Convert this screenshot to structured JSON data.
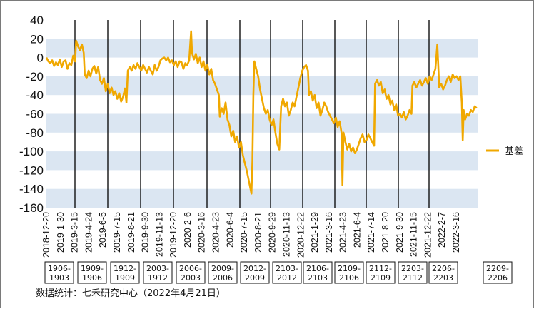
{
  "chart_data": {
    "type": "line",
    "ylim": [
      -160,
      40
    ],
    "yticks": [
      40,
      20,
      0,
      -20,
      -40,
      -60,
      -80,
      -100,
      -120,
      -140,
      -160
    ],
    "series_color": "#f0a800",
    "band_color": "#dbe6f2",
    "x_tick_labels": [
      "2018-12-20",
      "2019-1-30",
      "2019-3-15",
      "2019-4-24",
      "2019-6-5",
      "2019-7-15",
      "2019-8-21",
      "2019-9-30",
      "2019-11-13",
      "2019-12-20",
      "2020-2-6",
      "2020-3-16",
      "2020-4-23",
      "2020-6-4",
      "2020-7-15",
      "2020-8-21",
      "2020-9-29",
      "2020-11-13",
      "2020-12-22",
      "2021-1-29",
      "2021-3-16",
      "2021-4-23",
      "2021-6-4",
      "2021-7-14",
      "2021-8-20",
      "2021-9-30",
      "2021-11-15",
      "2021-12-22",
      "2022-2-7",
      "2022-3-16"
    ],
    "series": [
      {
        "name": "基差",
        "values": [
          [
            0,
            0
          ],
          [
            0.2,
            -4
          ],
          [
            0.4,
            -6
          ],
          [
            0.6,
            -3
          ],
          [
            0.8,
            -9
          ],
          [
            1.0,
            -5
          ],
          [
            1.2,
            -8
          ],
          [
            1.4,
            -2
          ],
          [
            1.6,
            -10
          ],
          [
            1.8,
            -4
          ],
          [
            2.0,
            -3
          ],
          [
            2.2,
            -12
          ],
          [
            2.4,
            -6
          ],
          [
            2.6,
            -8
          ],
          [
            2.8,
            2
          ],
          [
            3.0,
            -4
          ],
          [
            3.1,
            18
          ],
          [
            3.3,
            12
          ],
          [
            3.5,
            8
          ],
          [
            3.7,
            14
          ],
          [
            3.9,
            5
          ],
          [
            4.0,
            -18
          ],
          [
            4.2,
            -22
          ],
          [
            4.4,
            -14
          ],
          [
            4.6,
            -20
          ],
          [
            4.8,
            -12
          ],
          [
            5.0,
            -9
          ],
          [
            5.2,
            -17
          ],
          [
            5.4,
            -10
          ],
          [
            5.6,
            -24
          ],
          [
            5.8,
            -28
          ],
          [
            6.0,
            -22
          ],
          [
            6.2,
            -36
          ],
          [
            6.4,
            -28
          ],
          [
            6.6,
            -38
          ],
          [
            6.8,
            -32
          ],
          [
            7.0,
            -40
          ],
          [
            7.2,
            -36
          ],
          [
            7.4,
            -44
          ],
          [
            7.6,
            -38
          ],
          [
            7.8,
            -47
          ],
          [
            8.0,
            -42
          ],
          [
            8.2,
            -33
          ],
          [
            8.35,
            -48
          ],
          [
            8.5,
            -14
          ],
          [
            8.7,
            -10
          ],
          [
            8.9,
            -14
          ],
          [
            9.1,
            -8
          ],
          [
            9.3,
            -12
          ],
          [
            9.5,
            -6
          ],
          [
            9.7,
            -10
          ],
          [
            9.9,
            -14
          ],
          [
            10.1,
            -8
          ],
          [
            10.3,
            -12
          ],
          [
            10.5,
            -16
          ],
          [
            10.7,
            -10
          ],
          [
            10.9,
            -14
          ],
          [
            11.1,
            -18
          ],
          [
            11.3,
            -8
          ],
          [
            11.5,
            -14
          ],
          [
            11.7,
            -10
          ],
          [
            11.9,
            -3
          ],
          [
            12.1,
            -1
          ],
          [
            12.3,
            0
          ],
          [
            12.5,
            -3
          ],
          [
            12.7,
            0
          ],
          [
            12.9,
            -5
          ],
          [
            13.1,
            -3
          ],
          [
            13.3,
            -8
          ],
          [
            13.5,
            -4
          ],
          [
            13.7,
            -10
          ],
          [
            13.9,
            -4
          ],
          [
            14.1,
            -5
          ],
          [
            14.3,
            -12
          ],
          [
            14.5,
            -6
          ],
          [
            14.7,
            -8
          ],
          [
            14.9,
            -3
          ],
          [
            15.1,
            28
          ],
          [
            15.2,
            5
          ],
          [
            15.4,
            -2
          ],
          [
            15.6,
            4
          ],
          [
            15.8,
            -6
          ],
          [
            16.0,
            0
          ],
          [
            16.2,
            -10
          ],
          [
            16.4,
            -4
          ],
          [
            16.6,
            -14
          ],
          [
            16.8,
            -8
          ],
          [
            17.0,
            -18
          ],
          [
            17.2,
            -12
          ],
          [
            17.4,
            -24
          ],
          [
            17.6,
            -28
          ],
          [
            17.8,
            -34
          ],
          [
            18.0,
            -40
          ],
          [
            18.1,
            -63
          ],
          [
            18.3,
            -54
          ],
          [
            18.5,
            -60
          ],
          [
            18.7,
            -48
          ],
          [
            18.9,
            -66
          ],
          [
            19.1,
            -72
          ],
          [
            19.3,
            -84
          ],
          [
            19.5,
            -78
          ],
          [
            19.7,
            -90
          ],
          [
            19.9,
            -84
          ],
          [
            20.1,
            -96
          ],
          [
            20.3,
            -90
          ],
          [
            20.5,
            -104
          ],
          [
            20.7,
            -112
          ],
          [
            20.9,
            -120
          ],
          [
            21.1,
            -130
          ],
          [
            21.3,
            -140
          ],
          [
            21.4,
            -145
          ],
          [
            21.5,
            -110
          ],
          [
            21.6,
            -40
          ],
          [
            21.7,
            -4
          ],
          [
            21.9,
            -12
          ],
          [
            22.1,
            -20
          ],
          [
            22.3,
            -34
          ],
          [
            22.5,
            -44
          ],
          [
            22.7,
            -54
          ],
          [
            22.9,
            -60
          ],
          [
            23.1,
            -56
          ],
          [
            23.3,
            -66
          ],
          [
            23.5,
            -72
          ],
          [
            23.7,
            -66
          ],
          [
            23.9,
            -80
          ],
          [
            24.1,
            -92
          ],
          [
            24.3,
            -98
          ],
          [
            24.5,
            -52
          ],
          [
            24.7,
            -44
          ],
          [
            24.9,
            -52
          ],
          [
            25.1,
            -48
          ],
          [
            25.3,
            -62
          ],
          [
            25.5,
            -56
          ],
          [
            25.7,
            -48
          ],
          [
            25.9,
            -52
          ],
          [
            26.1,
            -42
          ],
          [
            26.3,
            -32
          ],
          [
            26.5,
            -22
          ],
          [
            26.7,
            -14
          ],
          [
            26.9,
            -10
          ],
          [
            27.1,
            -8
          ],
          [
            27.3,
            -14
          ],
          [
            27.4,
            -40
          ],
          [
            27.6,
            -36
          ],
          [
            27.8,
            -46
          ],
          [
            28.0,
            -40
          ],
          [
            28.2,
            -54
          ],
          [
            28.4,
            -48
          ],
          [
            28.6,
            -62
          ],
          [
            28.8,
            -56
          ],
          [
            29.0,
            -48
          ],
          [
            29.2,
            -52
          ],
          [
            29.4,
            -58
          ],
          [
            29.6,
            -62
          ],
          [
            29.8,
            -66
          ],
          [
            30.0,
            -70
          ],
          [
            30.2,
            -64
          ],
          [
            30.4,
            -74
          ],
          [
            30.6,
            -68
          ],
          [
            30.8,
            -80
          ],
          [
            30.9,
            -136
          ],
          [
            31.0,
            -80
          ],
          [
            31.2,
            -90
          ],
          [
            31.4,
            -98
          ],
          [
            31.6,
            -92
          ],
          [
            31.8,
            -100
          ],
          [
            32.0,
            -96
          ],
          [
            32.2,
            -102
          ],
          [
            32.4,
            -98
          ],
          [
            32.6,
            -92
          ],
          [
            32.8,
            -86
          ],
          [
            33.0,
            -82
          ],
          [
            33.2,
            -90
          ],
          [
            33.4,
            -88
          ],
          [
            33.6,
            -82
          ],
          [
            33.8,
            -86
          ],
          [
            34.0,
            -90
          ],
          [
            34.2,
            -94
          ],
          [
            34.3,
            -28
          ],
          [
            34.5,
            -24
          ],
          [
            34.7,
            -30
          ],
          [
            34.9,
            -26
          ],
          [
            35.1,
            -38
          ],
          [
            35.3,
            -34
          ],
          [
            35.5,
            -44
          ],
          [
            35.7,
            -40
          ],
          [
            35.9,
            -50
          ],
          [
            36.1,
            -46
          ],
          [
            36.3,
            -56
          ],
          [
            36.5,
            -50
          ],
          [
            36.7,
            -62
          ],
          [
            36.9,
            -60
          ],
          [
            37.1,
            -64
          ],
          [
            37.3,
            -58
          ],
          [
            37.5,
            -66
          ],
          [
            37.7,
            -62
          ],
          [
            37.9,
            -56
          ],
          [
            38.1,
            -60
          ],
          [
            38.2,
            -30
          ],
          [
            38.4,
            -26
          ],
          [
            38.6,
            -32
          ],
          [
            38.8,
            -28
          ],
          [
            39.0,
            -24
          ],
          [
            39.2,
            -30
          ],
          [
            39.4,
            -26
          ],
          [
            39.6,
            -22
          ],
          [
            39.8,
            -28
          ],
          [
            40.0,
            -20
          ],
          [
            40.2,
            -24
          ],
          [
            40.4,
            -18
          ],
          [
            40.6,
            -12
          ],
          [
            40.8,
            14
          ],
          [
            41.0,
            -32
          ],
          [
            41.2,
            -28
          ],
          [
            41.4,
            -34
          ],
          [
            41.6,
            -30
          ],
          [
            41.8,
            -24
          ],
          [
            42.0,
            -20
          ],
          [
            42.2,
            -26
          ],
          [
            42.4,
            -18
          ],
          [
            42.6,
            -22
          ],
          [
            42.8,
            -20
          ],
          [
            43.0,
            -24
          ],
          [
            43.2,
            -20
          ],
          [
            43.35,
            -48
          ],
          [
            43.45,
            -88
          ],
          [
            43.55,
            -56
          ],
          [
            43.7,
            -66
          ],
          [
            43.9,
            -60
          ],
          [
            44.1,
            -62
          ],
          [
            44.3,
            -56
          ],
          [
            44.5,
            -58
          ],
          [
            44.7,
            -52
          ],
          [
            44.9,
            -54
          ]
        ]
      }
    ],
    "contract_boxes": [
      "1906-1903",
      "1909-1906",
      "1912-1909",
      "2003-1912",
      "2006-2003",
      "2009-2006",
      "2012-2009",
      "2103-2012",
      "2106-2103",
      "2109-2106",
      "2112-2109",
      "2203-2112",
      "2206-2203",
      "2209-2206"
    ],
    "legend_label": "基差",
    "legend_position": "right"
  },
  "footer": {
    "note": "数据统计：七禾研究中心（2022年4月21日）"
  }
}
